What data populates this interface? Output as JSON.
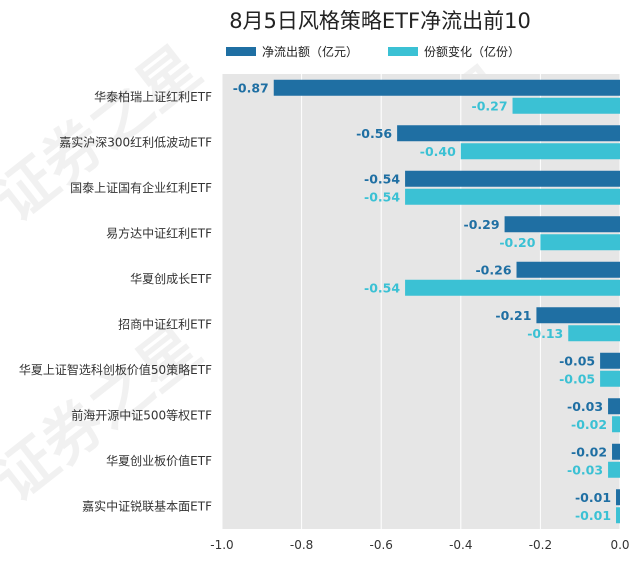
{
  "chart_data": {
    "type": "bar",
    "orientation": "horizontal",
    "title": "8月5日风格策略ETF净流出前10",
    "categories": [
      "华泰柏瑞上证红利ETF",
      "嘉实沪深300红利低波动ETF",
      "国泰上证国有企业红利ETF",
      "易方达中证红利ETF",
      "华夏创成长ETF",
      "招商中证红利ETF",
      "华夏上证智选科创板价值50策略ETF",
      "前海开源中证500等权ETF",
      "华夏创业板价值ETF",
      "嘉实中证锐联基本面ETF"
    ],
    "series": [
      {
        "name": "净流出额（亿元）",
        "color": "#1f6fa3",
        "values": [
          -0.87,
          -0.56,
          -0.54,
          -0.29,
          -0.26,
          -0.21,
          -0.05,
          -0.03,
          -0.02,
          -0.01
        ],
        "labels": [
          "-0.87",
          "-0.56",
          "-0.54",
          "-0.29",
          "-0.26",
          "-0.21",
          "-0.05",
          "-0.03",
          "-0.02",
          "-0.01"
        ]
      },
      {
        "name": "份额变化（亿份）",
        "color": "#3bc1d4",
        "values": [
          -0.27,
          -0.4,
          -0.54,
          -0.2,
          -0.54,
          -0.13,
          -0.05,
          -0.02,
          -0.03,
          -0.01
        ],
        "labels": [
          "-0.27",
          "-0.40",
          "-0.54",
          "-0.20",
          "-0.54",
          "-0.13",
          "-0.05",
          "-0.02",
          "-0.03",
          "-0.01"
        ]
      }
    ],
    "xlim": [
      -1.0,
      0.0
    ],
    "xticks": [
      -1.0,
      -0.8,
      -0.6,
      -0.4,
      -0.2,
      0.0
    ],
    "xtick_labels": [
      "-1.0",
      "-0.8",
      "-0.6",
      "-0.4",
      "-0.2",
      "0.0"
    ],
    "grid": true,
    "legend_position": "top-center"
  },
  "watermark": "证券之星"
}
